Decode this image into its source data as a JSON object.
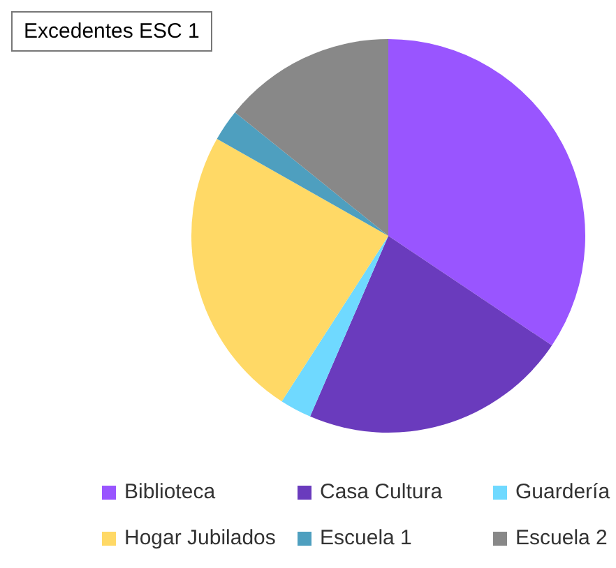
{
  "chart_data": {
    "type": "pie",
    "title": "Excedentes ESC 1",
    "categories": [
      "Biblioteca",
      "Casa Cultura",
      "Guardería",
      "Hogar Jubilados",
      "Escuela 1",
      "Escuela 2"
    ],
    "values": [
      34.4,
      22.1,
      2.6,
      24.1,
      2.6,
      14.2
    ],
    "colors": [
      "#9955ff",
      "#6a3bbd",
      "#6fd9ff",
      "#ffd966",
      "#4e9fbf",
      "#888888"
    ],
    "legend": "bottom"
  }
}
